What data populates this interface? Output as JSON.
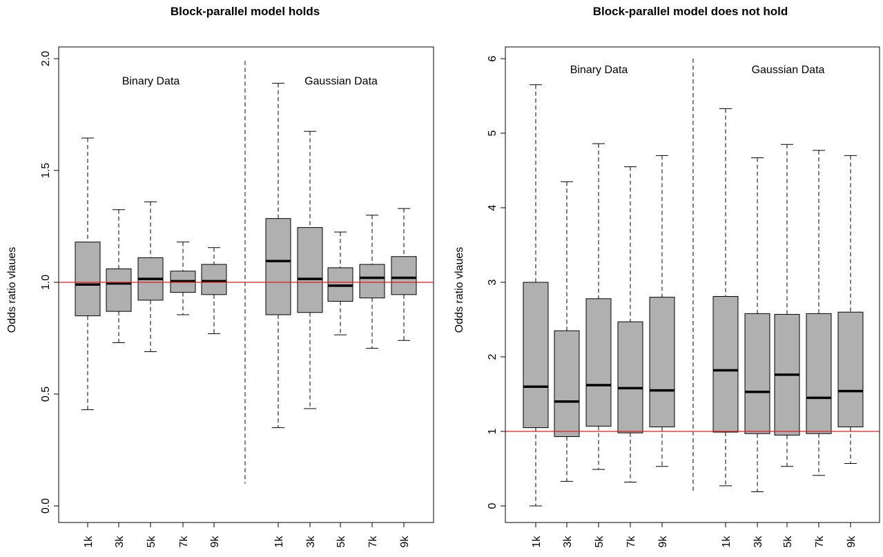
{
  "chart_data": [
    {
      "type": "boxplot",
      "title": "Block-parallel model holds",
      "ylabel": "Odds ratio vlaues",
      "xlabel": "",
      "ylim": [
        0,
        2
      ],
      "yticks": [
        "0.0",
        "0.5",
        "1.0",
        "1.5",
        "2.0"
      ],
      "ytick_values": [
        0,
        0.5,
        1.0,
        1.5,
        2.0
      ],
      "reference_line": 1.0,
      "reference_color": "#e31a1c",
      "box_color": "#b0b0b0",
      "separator_range": [
        0.1,
        1.99
      ],
      "groups": [
        {
          "label": "Binary Data",
          "label_y": 1.9,
          "categories": [
            "1k",
            "3k",
            "5k",
            "7k",
            "9k"
          ],
          "boxes": [
            {
              "min": 0.43,
              "q1": 0.85,
              "median": 0.99,
              "q3": 1.18,
              "max": 1.645
            },
            {
              "min": 0.73,
              "q1": 0.87,
              "median": 0.995,
              "q3": 1.06,
              "max": 1.325
            },
            {
              "min": 0.69,
              "q1": 0.92,
              "median": 1.015,
              "q3": 1.11,
              "max": 1.36
            },
            {
              "min": 0.855,
              "q1": 0.955,
              "median": 1.005,
              "q3": 1.05,
              "max": 1.18
            },
            {
              "min": 0.77,
              "q1": 0.945,
              "median": 1.005,
              "q3": 1.08,
              "max": 1.155
            }
          ]
        },
        {
          "label": "Gaussian Data",
          "label_y": 1.9,
          "categories": [
            "1k",
            "3k",
            "5k",
            "7k",
            "9k"
          ],
          "boxes": [
            {
              "min": 0.35,
              "q1": 0.855,
              "median": 1.095,
              "q3": 1.285,
              "max": 1.89
            },
            {
              "min": 0.435,
              "q1": 0.865,
              "median": 1.015,
              "q3": 1.245,
              "max": 1.675
            },
            {
              "min": 0.765,
              "q1": 0.915,
              "median": 0.985,
              "q3": 1.065,
              "max": 1.225
            },
            {
              "min": 0.705,
              "q1": 0.93,
              "median": 1.02,
              "q3": 1.08,
              "max": 1.3
            },
            {
              "min": 0.74,
              "q1": 0.945,
              "median": 1.02,
              "q3": 1.115,
              "max": 1.33
            }
          ]
        }
      ]
    },
    {
      "type": "boxplot",
      "title": "Block-parallel model does not hold",
      "ylabel": "Odds ratio vlaues",
      "xlabel": "",
      "ylim": [
        0,
        6
      ],
      "yticks": [
        "0",
        "1",
        "2",
        "3",
        "4",
        "5",
        "6"
      ],
      "ytick_values": [
        0,
        1,
        2,
        3,
        4,
        5,
        6
      ],
      "reference_line": 1.0,
      "reference_color": "#e31a1c",
      "box_color": "#b0b0b0",
      "separator_range": [
        0.2,
        6.0
      ],
      "groups": [
        {
          "label": "Binary Data",
          "label_y": 5.85,
          "categories": [
            "1k",
            "3k",
            "5k",
            "7k",
            "9k"
          ],
          "boxes": [
            {
              "min": 0.0,
              "q1": 1.05,
              "median": 1.6,
              "q3": 3.0,
              "max": 5.65
            },
            {
              "min": 0.33,
              "q1": 0.93,
              "median": 1.4,
              "q3": 2.35,
              "max": 4.35
            },
            {
              "min": 0.49,
              "q1": 1.07,
              "median": 1.62,
              "q3": 2.78,
              "max": 4.86
            },
            {
              "min": 0.32,
              "q1": 0.98,
              "median": 1.58,
              "q3": 2.47,
              "max": 4.55
            },
            {
              "min": 0.53,
              "q1": 1.06,
              "median": 1.55,
              "q3": 2.8,
              "max": 4.7
            }
          ]
        },
        {
          "label": "Gaussian Data",
          "label_y": 5.85,
          "categories": [
            "1k",
            "3k",
            "5k",
            "7k",
            "9k"
          ],
          "boxes": [
            {
              "min": 0.27,
              "q1": 0.99,
              "median": 1.82,
              "q3": 2.81,
              "max": 5.33
            },
            {
              "min": 0.19,
              "q1": 0.97,
              "median": 1.53,
              "q3": 2.58,
              "max": 4.67
            },
            {
              "min": 0.53,
              "q1": 0.95,
              "median": 1.76,
              "q3": 2.57,
              "max": 4.85
            },
            {
              "min": 0.41,
              "q1": 0.97,
              "median": 1.45,
              "q3": 2.58,
              "max": 4.77
            },
            {
              "min": 0.57,
              "q1": 1.06,
              "median": 1.54,
              "q3": 2.6,
              "max": 4.7
            }
          ]
        }
      ]
    }
  ]
}
